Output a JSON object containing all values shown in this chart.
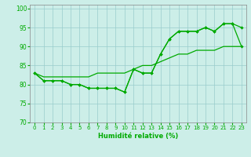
{
  "xlabel": "Humidité relative (%)",
  "xlim": [
    -0.5,
    23.5
  ],
  "ylim": [
    70,
    101
  ],
  "yticks": [
    70,
    75,
    80,
    85,
    90,
    95,
    100
  ],
  "background_color": "#cceee8",
  "grid_color": "#99cccc",
  "line_color": "#00aa00",
  "series1": [
    83,
    81,
    81,
    81,
    80,
    80,
    79,
    79,
    79,
    79,
    78,
    84,
    83,
    83,
    88,
    92,
    94,
    94,
    94,
    95,
    94,
    96,
    96,
    95
  ],
  "series2": [
    83,
    81,
    81,
    81,
    80,
    80,
    79,
    79,
    79,
    79,
    78,
    84,
    83,
    83,
    88,
    92,
    94,
    94,
    94,
    95,
    94,
    96,
    96,
    90
  ],
  "series3": [
    83,
    82,
    82,
    82,
    82,
    82,
    82,
    83,
    83,
    83,
    83,
    84,
    85,
    85,
    86,
    87,
    88,
    88,
    89,
    89,
    89,
    90,
    90,
    90
  ]
}
